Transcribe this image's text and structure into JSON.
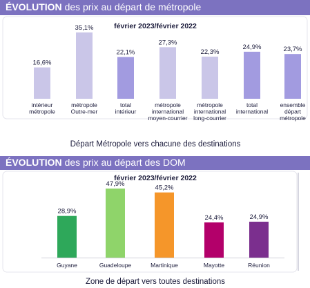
{
  "chart_data": [
    {
      "type": "bar",
      "header": {
        "bold": "ÉVOLUTION",
        "text": "des prix au départ de métropole"
      },
      "subtitle": "février 2023/février 2022",
      "caption": "Départ Métropole vers chacune des destinations",
      "categories": [
        [
          "intérieur",
          "métropole"
        ],
        [
          "métropole",
          "Outre-mer"
        ],
        [
          "total",
          "intérieur"
        ],
        [
          "métropole",
          "international",
          "moyen-courrier"
        ],
        [
          "métropole",
          "international",
          "long-courrier"
        ],
        [
          "total",
          "international"
        ],
        [
          "ensemble",
          "départ",
          "métropole"
        ]
      ],
      "values": [
        16.6,
        35.1,
        22.1,
        27.3,
        22.3,
        24.9,
        23.7
      ],
      "value_labels": [
        "16,6%",
        "35,1%",
        "22,1%",
        "27,3%",
        "22,3%",
        "24,9%",
        "23,7%"
      ],
      "colors": [
        "#cac6e8",
        "#cac6e8",
        "#a29be0",
        "#cac6e8",
        "#cac6e8",
        "#a29be0",
        "#a29be0"
      ]
    },
    {
      "type": "bar",
      "header": {
        "bold": "ÉVOLUTION",
        "text": "des prix au départ des DOM"
      },
      "subtitle": "février 2023/février 2022",
      "caption": "Zone de départ vers toutes destinations",
      "categories": [
        [
          "Guyane"
        ],
        [
          "Guadeloupe"
        ],
        [
          "Martinique"
        ],
        [
          "Mayotte"
        ],
        [
          "Réunion"
        ]
      ],
      "values": [
        28.9,
        47.9,
        45.2,
        24.4,
        24.9
      ],
      "value_labels": [
        "28,9%",
        "47,9%",
        "45,2%",
        "24,4%",
        "24,9%"
      ],
      "colors": [
        "#2ea85a",
        "#8fd46a",
        "#f5962a",
        "#b3006a",
        "#7b2f8e"
      ]
    }
  ]
}
